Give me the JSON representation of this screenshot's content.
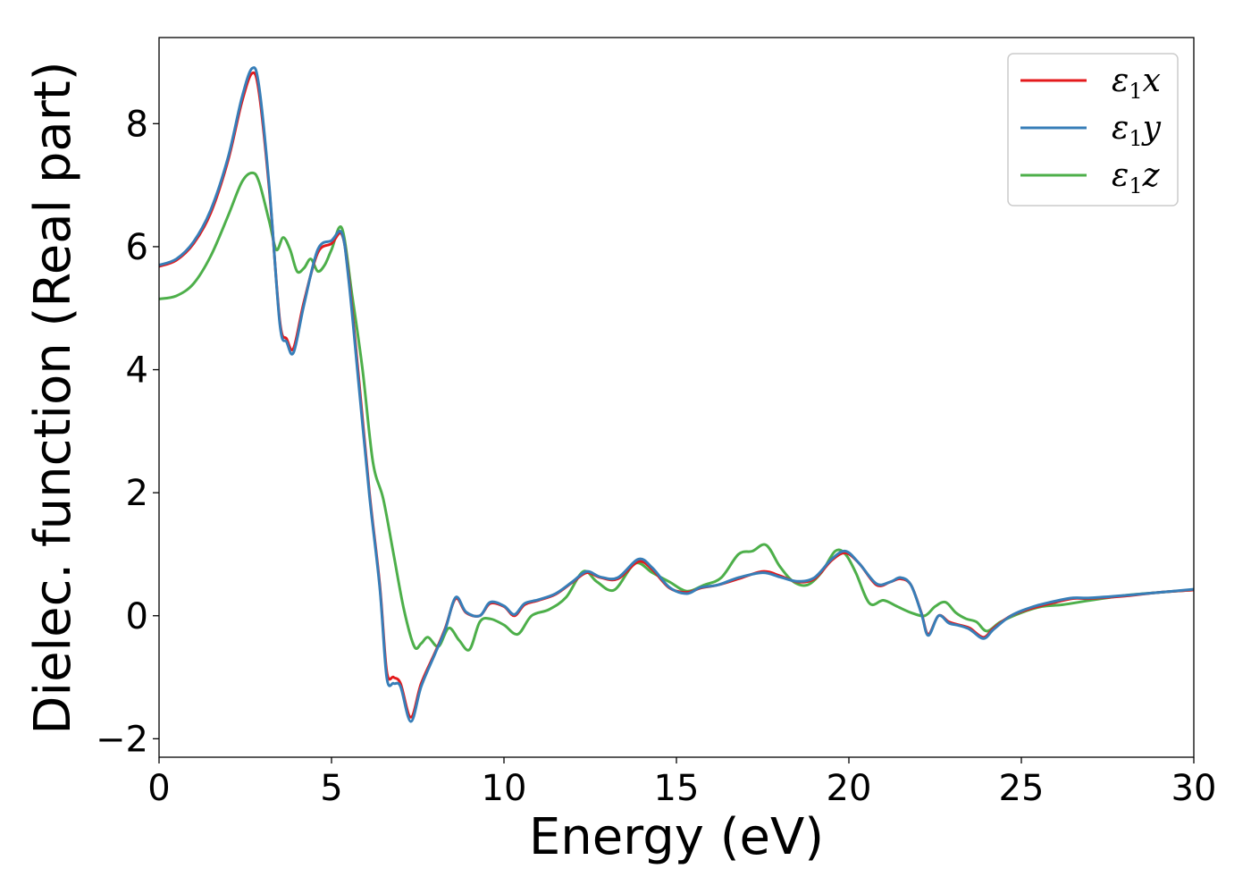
{
  "chart_data": {
    "type": "line",
    "title": "",
    "xlabel": "Energy (eV)",
    "ylabel": "Dielec. function (Real part)",
    "xlim": [
      0,
      30
    ],
    "ylim": [
      -2.3,
      9.4
    ],
    "xticks": [
      0,
      5,
      10,
      15,
      20,
      25,
      30
    ],
    "yticks": [
      -2,
      0,
      2,
      4,
      6,
      8
    ],
    "xtick_labels": [
      "0",
      "5",
      "10",
      "15",
      "20",
      "25",
      "30"
    ],
    "ytick_labels": [
      "−2",
      "0",
      "2",
      "4",
      "6",
      "8"
    ],
    "grid": false,
    "legend_position": "top-right",
    "series": [
      {
        "name": "ε₁x",
        "legend_base": "ε",
        "legend_sub": "1",
        "legend_var": "x",
        "color": "#e41a1c",
        "x": [
          0,
          0.5,
          1.0,
          1.5,
          2.0,
          2.4,
          2.7,
          2.9,
          3.2,
          3.5,
          3.7,
          3.9,
          4.2,
          4.6,
          5.0,
          5.3,
          5.5,
          5.8,
          6.1,
          6.4,
          6.6,
          6.8,
          7.0,
          7.3,
          7.6,
          8.0,
          8.3,
          8.6,
          8.9,
          9.3,
          9.6,
          10.0,
          10.3,
          10.6,
          11.0,
          11.5,
          12.0,
          12.4,
          12.8,
          13.3,
          13.9,
          14.3,
          14.8,
          15.3,
          15.7,
          16.2,
          16.8,
          17.5,
          18.0,
          18.5,
          19.0,
          19.5,
          19.9,
          20.3,
          20.8,
          21.2,
          21.5,
          21.8,
          22.1,
          22.3,
          22.6,
          22.9,
          23.2,
          23.5,
          23.9,
          24.2,
          24.7,
          25.3,
          26.0,
          26.5,
          27.0,
          28.0,
          29.0,
          30.0
        ],
        "values": [
          5.68,
          5.78,
          6.05,
          6.55,
          7.4,
          8.35,
          8.82,
          8.5,
          6.9,
          4.8,
          4.5,
          4.35,
          5.1,
          5.9,
          6.05,
          6.2,
          5.5,
          3.8,
          2.0,
          0.5,
          -0.9,
          -1.0,
          -1.1,
          -1.65,
          -1.1,
          -0.6,
          -0.2,
          0.28,
          0.05,
          0.0,
          0.2,
          0.15,
          0.0,
          0.18,
          0.25,
          0.35,
          0.55,
          0.7,
          0.62,
          0.6,
          0.88,
          0.75,
          0.45,
          0.38,
          0.45,
          0.5,
          0.6,
          0.72,
          0.65,
          0.55,
          0.6,
          0.9,
          1.02,
          0.85,
          0.5,
          0.55,
          0.6,
          0.5,
          0.05,
          -0.3,
          0.0,
          -0.1,
          -0.15,
          -0.2,
          -0.35,
          -0.2,
          0.0,
          0.12,
          0.22,
          0.28,
          0.28,
          0.32,
          0.38,
          0.42
        ]
      },
      {
        "name": "ε₁y",
        "legend_base": "ε",
        "legend_sub": "1",
        "legend_var": "y",
        "color": "#377eb8",
        "x": [
          0,
          0.5,
          1.0,
          1.5,
          2.0,
          2.4,
          2.7,
          2.9,
          3.2,
          3.5,
          3.7,
          3.9,
          4.2,
          4.6,
          5.0,
          5.3,
          5.5,
          5.8,
          6.1,
          6.4,
          6.6,
          6.8,
          7.0,
          7.3,
          7.6,
          8.0,
          8.3,
          8.6,
          8.9,
          9.3,
          9.6,
          10.0,
          10.3,
          10.6,
          11.0,
          11.5,
          12.0,
          12.4,
          12.8,
          13.3,
          13.9,
          14.3,
          14.8,
          15.3,
          15.7,
          16.2,
          16.8,
          17.5,
          18.0,
          18.5,
          19.0,
          19.5,
          19.9,
          20.3,
          20.8,
          21.2,
          21.5,
          21.8,
          22.1,
          22.3,
          22.6,
          22.9,
          23.2,
          23.5,
          23.9,
          24.2,
          24.7,
          25.3,
          26.0,
          26.5,
          27.0,
          28.0,
          29.0,
          30.0
        ],
        "values": [
          5.7,
          5.8,
          6.08,
          6.6,
          7.45,
          8.42,
          8.9,
          8.6,
          6.95,
          4.75,
          4.45,
          4.28,
          5.05,
          5.95,
          6.1,
          6.22,
          5.45,
          3.7,
          1.95,
          0.45,
          -1.0,
          -1.1,
          -1.15,
          -1.72,
          -1.15,
          -0.62,
          -0.22,
          0.3,
          0.06,
          0.0,
          0.22,
          0.16,
          0.02,
          0.2,
          0.26,
          0.36,
          0.56,
          0.72,
          0.63,
          0.62,
          0.92,
          0.78,
          0.46,
          0.36,
          0.46,
          0.5,
          0.62,
          0.7,
          0.63,
          0.56,
          0.62,
          0.92,
          1.05,
          0.85,
          0.52,
          0.55,
          0.62,
          0.5,
          0.04,
          -0.32,
          0.0,
          -0.12,
          -0.16,
          -0.22,
          -0.37,
          -0.22,
          0.0,
          0.14,
          0.24,
          0.29,
          0.29,
          0.33,
          0.38,
          0.43
        ]
      },
      {
        "name": "ε₁z",
        "legend_base": "ε",
        "legend_sub": "1",
        "legend_var": "z",
        "color": "#4daf4a",
        "x": [
          0,
          0.5,
          1.0,
          1.5,
          2.0,
          2.4,
          2.7,
          2.9,
          3.2,
          3.4,
          3.6,
          3.8,
          4.0,
          4.2,
          4.4,
          4.6,
          4.8,
          5.0,
          5.3,
          5.6,
          5.9,
          6.2,
          6.5,
          6.8,
          7.1,
          7.4,
          7.6,
          7.8,
          8.1,
          8.4,
          8.7,
          9.0,
          9.3,
          9.6,
          10.0,
          10.4,
          10.8,
          11.3,
          11.8,
          12.3,
          12.7,
          13.2,
          13.8,
          14.3,
          14.8,
          15.3,
          15.8,
          16.3,
          16.8,
          17.2,
          17.6,
          18.0,
          18.4,
          18.8,
          19.2,
          19.6,
          19.9,
          20.2,
          20.6,
          21.0,
          21.4,
          21.8,
          22.2,
          22.5,
          22.8,
          23.1,
          23.4,
          23.7,
          24.0,
          24.4,
          25.0,
          25.6,
          26.2,
          27.0,
          28.0,
          29.0,
          30.0
        ],
        "values": [
          5.15,
          5.2,
          5.4,
          5.85,
          6.5,
          7.05,
          7.2,
          7.05,
          6.4,
          5.95,
          6.15,
          5.95,
          5.6,
          5.65,
          5.8,
          5.6,
          5.7,
          5.95,
          6.3,
          5.2,
          4.0,
          2.5,
          1.9,
          1.0,
          0.1,
          -0.5,
          -0.45,
          -0.35,
          -0.5,
          -0.2,
          -0.4,
          -0.55,
          -0.1,
          -0.05,
          -0.15,
          -0.3,
          0.0,
          0.1,
          0.3,
          0.72,
          0.55,
          0.42,
          0.85,
          0.7,
          0.55,
          0.4,
          0.5,
          0.62,
          1.0,
          1.05,
          1.15,
          0.8,
          0.55,
          0.5,
          0.7,
          1.05,
          1.0,
          0.7,
          0.2,
          0.25,
          0.15,
          0.05,
          0.0,
          0.15,
          0.22,
          0.05,
          -0.05,
          -0.1,
          -0.25,
          -0.1,
          0.05,
          0.15,
          0.18,
          0.25,
          0.33,
          0.38,
          0.42
        ]
      }
    ]
  }
}
